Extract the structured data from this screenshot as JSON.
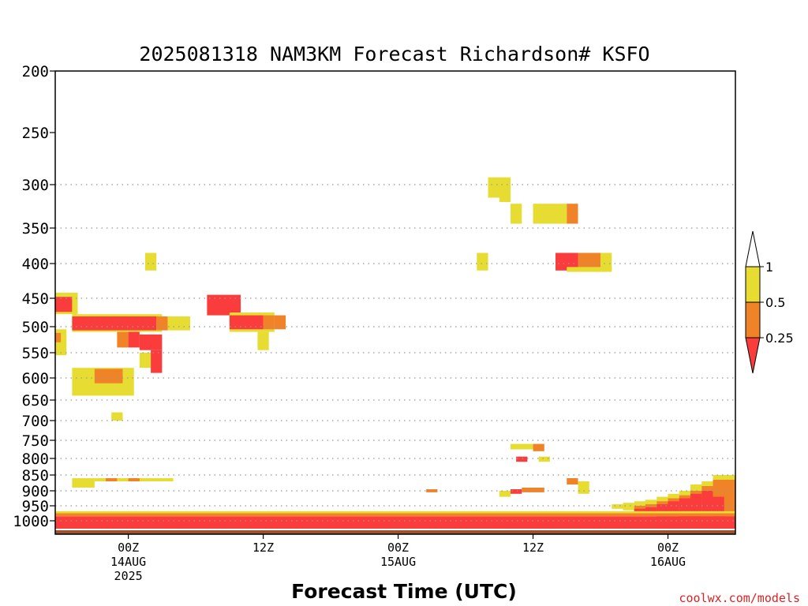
{
  "chart_data": {
    "type": "heatmap",
    "title": "2025081318 NAM3KM Forecast Richardson# KSFO",
    "xlabel": "Forecast Time (UTC)",
    "ylabel": "",
    "credit": "coolwx.com/models",
    "y_scale": "pressure (hPa), top = 200, bottom = 1000, log-like",
    "ylim": [
      1000,
      200
    ],
    "y_ticks": [
      "200",
      "250",
      "300",
      "350",
      "400",
      "450",
      "500",
      "550",
      "600",
      "650",
      "700",
      "750",
      "800",
      "850",
      "900",
      "950",
      "1000"
    ],
    "x_range_hours": [
      -6.5,
      54
    ],
    "x_ticks": [
      {
        "hour": 0,
        "line1": "00Z",
        "line2": "14AUG",
        "line3": "2025"
      },
      {
        "hour": 12,
        "line1": "12Z",
        "line2": "",
        "line3": ""
      },
      {
        "hour": 24,
        "line1": "00Z",
        "line2": "15AUG",
        "line3": ""
      },
      {
        "hour": 36,
        "line1": "12Z",
        "line2": "",
        "line3": ""
      },
      {
        "hour": 48,
        "line1": "00Z",
        "line2": "16AUG",
        "line3": ""
      }
    ],
    "grid_lines_at": [
      300,
      350,
      400,
      450,
      500,
      550,
      600,
      650,
      700,
      750,
      800,
      850,
      900,
      950,
      1000
    ],
    "legend": {
      "placement": "right",
      "boundaries": [
        "1",
        "0.5",
        "0.25"
      ],
      "categories": [
        {
          "range": "> 1",
          "color": "#ffffff"
        },
        {
          "range": "0.5 - 1",
          "color": "#e6dc32"
        },
        {
          "range": "0.25 - 0.5",
          "color": "#f08228"
        },
        {
          "range": "< 0.25",
          "color": "#fa3c3c"
        }
      ]
    },
    "colors": {
      "yellow": "#e6dc32",
      "orange": "#f08228",
      "red": "#fa3c3c",
      "ground": "#a0522d"
    },
    "cells": [
      {
        "t0": -6.5,
        "t1": -5.5,
        "p0": 555,
        "p1": 505,
        "c": "yellow"
      },
      {
        "t0": -6.5,
        "t1": -6,
        "p0": 530,
        "p1": 512,
        "c": "orange"
      },
      {
        "t0": -6.5,
        "t1": -4.5,
        "p0": 478,
        "p1": 442,
        "c": "yellow"
      },
      {
        "t0": -6.5,
        "t1": -5,
        "p0": 474,
        "p1": 448,
        "c": "red"
      },
      {
        "t0": -5,
        "t1": 3,
        "p0": 510,
        "p1": 478,
        "c": "yellow"
      },
      {
        "t0": -5,
        "t1": 2.5,
        "p0": 507,
        "p1": 482,
        "c": "red"
      },
      {
        "t0": 2.5,
        "t1": 3.5,
        "p0": 507,
        "p1": 482,
        "c": "orange"
      },
      {
        "t0": 3.5,
        "t1": 5.5,
        "p0": 507,
        "p1": 482,
        "c": "yellow"
      },
      {
        "t0": -1,
        "t1": 0,
        "p0": 540,
        "p1": 510,
        "c": "orange"
      },
      {
        "t0": 0,
        "t1": 1,
        "p0": 540,
        "p1": 510,
        "c": "red"
      },
      {
        "t0": 1,
        "t1": 3,
        "p0": 545,
        "p1": 515,
        "c": "red"
      },
      {
        "t0": 1,
        "t1": 2,
        "p0": 580,
        "p1": 550,
        "c": "yellow"
      },
      {
        "t0": 2,
        "t1": 3,
        "p0": 590,
        "p1": 545,
        "c": "red"
      },
      {
        "t0": 1.5,
        "t1": 2.5,
        "p0": 410,
        "p1": 385,
        "c": "yellow"
      },
      {
        "t0": -5,
        "t1": 0.5,
        "p0": 640,
        "p1": 580,
        "c": "yellow"
      },
      {
        "t0": -3,
        "t1": -0.5,
        "p0": 612,
        "p1": 582,
        "c": "orange"
      },
      {
        "t0": -1.5,
        "t1": -0.5,
        "p0": 700,
        "p1": 680,
        "c": "yellow"
      },
      {
        "t0": 7,
        "t1": 10,
        "p0": 480,
        "p1": 445,
        "c": "red"
      },
      {
        "t0": 9,
        "t1": 13,
        "p0": 510,
        "p1": 475,
        "c": "yellow"
      },
      {
        "t0": 9,
        "t1": 12,
        "p0": 505,
        "p1": 480,
        "c": "red"
      },
      {
        "t0": 12,
        "t1": 13,
        "p0": 505,
        "p1": 480,
        "c": "orange"
      },
      {
        "t0": 13,
        "t1": 14,
        "p0": 505,
        "p1": 480,
        "c": "orange"
      },
      {
        "t0": 11.5,
        "t1": 12.5,
        "p0": 545,
        "p1": 510,
        "c": "yellow"
      },
      {
        "t0": 32,
        "t1": 34,
        "p0": 315,
        "p1": 293,
        "c": "yellow"
      },
      {
        "t0": 33,
        "t1": 34,
        "p0": 320,
        "p1": 312,
        "c": "yellow"
      },
      {
        "t0": 34,
        "t1": 35,
        "p0": 345,
        "p1": 322,
        "c": "yellow"
      },
      {
        "t0": 31,
        "t1": 32,
        "p0": 410,
        "p1": 385,
        "c": "yellow"
      },
      {
        "t0": 36,
        "t1": 39,
        "p0": 345,
        "p1": 322,
        "c": "yellow"
      },
      {
        "t0": 39,
        "t1": 40,
        "p0": 345,
        "p1": 322,
        "c": "orange"
      },
      {
        "t0": 38,
        "t1": 40,
        "p0": 410,
        "p1": 385,
        "c": "red"
      },
      {
        "t0": 40,
        "t1": 42,
        "p0": 410,
        "p1": 385,
        "c": "orange"
      },
      {
        "t0": 42,
        "t1": 43,
        "p0": 410,
        "p1": 385,
        "c": "yellow"
      },
      {
        "t0": 39,
        "t1": 43,
        "p0": 412,
        "p1": 405,
        "c": "yellow"
      },
      {
        "t0": 34,
        "t1": 36,
        "p0": 775,
        "p1": 760,
        "c": "yellow"
      },
      {
        "t0": 36,
        "t1": 37,
        "p0": 780,
        "p1": 760,
        "c": "orange"
      },
      {
        "t0": 34.5,
        "t1": 35.5,
        "p0": 810,
        "p1": 795,
        "c": "red"
      },
      {
        "t0": 36.5,
        "t1": 37.5,
        "p0": 810,
        "p1": 795,
        "c": "yellow"
      },
      {
        "t0": -5,
        "t1": -3,
        "p0": 890,
        "p1": 860,
        "c": "yellow"
      },
      {
        "t0": -3,
        "t1": 4,
        "p0": 870,
        "p1": 860,
        "c": "yellow"
      },
      {
        "t0": -2,
        "t1": -1,
        "p0": 870,
        "p1": 860,
        "c": "orange"
      },
      {
        "t0": 0,
        "t1": 1,
        "p0": 870,
        "p1": 860,
        "c": "orange"
      },
      {
        "t0": 26.5,
        "t1": 27.5,
        "p0": 905,
        "p1": 895,
        "c": "orange"
      },
      {
        "t0": 39,
        "t1": 40,
        "p0": 880,
        "p1": 860,
        "c": "orange"
      },
      {
        "t0": 40,
        "t1": 41,
        "p0": 910,
        "p1": 870,
        "c": "yellow"
      },
      {
        "t0": 33,
        "t1": 34,
        "p0": 920,
        "p1": 900,
        "c": "yellow"
      },
      {
        "t0": 34,
        "t1": 35,
        "p0": 910,
        "p1": 895,
        "c": "red"
      },
      {
        "t0": 35,
        "t1": 37,
        "p0": 905,
        "p1": 890,
        "c": "orange"
      },
      {
        "t0": 43,
        "t1": 44,
        "p0": 960,
        "p1": 945,
        "c": "yellow"
      },
      {
        "t0": 44,
        "t1": 45,
        "p0": 965,
        "p1": 940,
        "c": "yellow"
      },
      {
        "t0": 45,
        "t1": 46,
        "p0": 975,
        "p1": 935,
        "c": "yellow"
      },
      {
        "t0": 46,
        "t1": 47,
        "p0": 975,
        "p1": 930,
        "c": "yellow"
      },
      {
        "t0": 47,
        "t1": 48,
        "p0": 975,
        "p1": 920,
        "c": "yellow"
      },
      {
        "t0": 48,
        "t1": 49,
        "p0": 980,
        "p1": 910,
        "c": "yellow"
      },
      {
        "t0": 49,
        "t1": 50,
        "p0": 985,
        "p1": 900,
        "c": "yellow"
      },
      {
        "t0": 50,
        "t1": 51,
        "p0": 990,
        "p1": 880,
        "c": "yellow"
      },
      {
        "t0": 51,
        "t1": 52,
        "p0": 995,
        "p1": 870,
        "c": "yellow"
      },
      {
        "t0": 52,
        "t1": 54,
        "p0": 1000,
        "p1": 850,
        "c": "yellow"
      },
      {
        "t0": 45,
        "t1": 46,
        "p0": 970,
        "p1": 950,
        "c": "orange"
      },
      {
        "t0": 46,
        "t1": 47,
        "p0": 975,
        "p1": 945,
        "c": "orange"
      },
      {
        "t0": 47,
        "t1": 48,
        "p0": 975,
        "p1": 935,
        "c": "orange"
      },
      {
        "t0": 48,
        "t1": 49,
        "p0": 980,
        "p1": 925,
        "c": "orange"
      },
      {
        "t0": 49,
        "t1": 50,
        "p0": 985,
        "p1": 915,
        "c": "orange"
      },
      {
        "t0": 50,
        "t1": 51,
        "p0": 990,
        "p1": 900,
        "c": "orange"
      },
      {
        "t0": 51,
        "t1": 52,
        "p0": 995,
        "p1": 885,
        "c": "orange"
      },
      {
        "t0": 52,
        "t1": 54,
        "p0": 1000,
        "p1": 865,
        "c": "orange"
      },
      {
        "t0": 45,
        "t1": 46,
        "p0": 975,
        "p1": 960,
        "c": "red"
      },
      {
        "t0": 46,
        "t1": 47,
        "p0": 980,
        "p1": 955,
        "c": "red"
      },
      {
        "t0": 47,
        "t1": 48,
        "p0": 985,
        "p1": 945,
        "c": "red"
      },
      {
        "t0": 48,
        "t1": 49,
        "p0": 985,
        "p1": 935,
        "c": "red"
      },
      {
        "t0": 49,
        "t1": 50,
        "p0": 990,
        "p1": 925,
        "c": "red"
      },
      {
        "t0": 50,
        "t1": 51,
        "p0": 990,
        "p1": 910,
        "c": "red"
      },
      {
        "t0": 51,
        "t1": 52,
        "p0": 985,
        "p1": 900,
        "c": "red"
      },
      {
        "t0": 52,
        "t1": 53,
        "p0": 990,
        "p1": 920,
        "c": "red"
      },
      {
        "t0": -6.5,
        "t1": 54,
        "p0": 1025,
        "p1": 1005,
        "c": "red"
      },
      {
        "t0": -6.5,
        "t1": 54,
        "p0": 1005,
        "p1": 985,
        "c": "red"
      },
      {
        "t0": -6.5,
        "t1": 54,
        "p0": 985,
        "p1": 975,
        "c": "orange"
      },
      {
        "t0": -6.5,
        "t1": 54,
        "p0": 975,
        "p1": 968,
        "c": "yellow"
      },
      {
        "t0": -6.5,
        "t1": 54,
        "p0": 1055,
        "p1": 1030,
        "c": "ground"
      }
    ]
  }
}
